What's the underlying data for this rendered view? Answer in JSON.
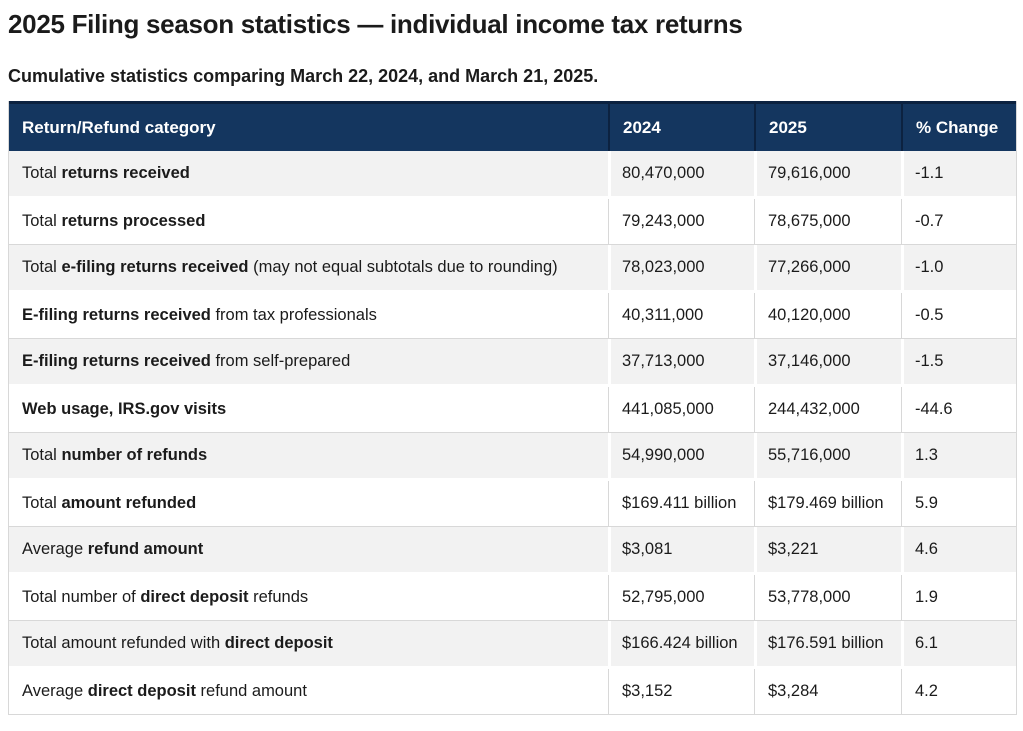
{
  "page": {
    "title": "2025 Filing season statistics — individual income tax returns",
    "subtitle": "Cumulative statistics comparing March 22, 2024, and March 21, 2025."
  },
  "colors": {
    "header_background": "#14365F",
    "header_border": "#0C2240",
    "header_text": "#FFFFFF",
    "row_alternate_background": "#F2F2F2",
    "row_background": "#FFFFFF",
    "cell_border": "#D8D8D8",
    "body_text": "#1B1B1B"
  },
  "table": {
    "columns": [
      "Return/Refund category",
      "2024",
      "2025",
      "% Change"
    ],
    "rows": [
      {
        "category": [
          {
            "text": "Total ",
            "bold": false
          },
          {
            "text": "returns received",
            "bold": true
          }
        ],
        "v2024": "80,470,000",
        "v2025": "79,616,000",
        "change": "-1.1"
      },
      {
        "category": [
          {
            "text": "Total ",
            "bold": false
          },
          {
            "text": "returns processed",
            "bold": true
          }
        ],
        "v2024": "79,243,000",
        "v2025": "78,675,000",
        "change": "-0.7"
      },
      {
        "category": [
          {
            "text": "Total ",
            "bold": false
          },
          {
            "text": "e-filing returns received",
            "bold": true
          },
          {
            "text": " (may not equal subtotals due to rounding)",
            "bold": false
          }
        ],
        "v2024": "78,023,000",
        "v2025": "77,266,000",
        "change": "-1.0"
      },
      {
        "category": [
          {
            "text": "E-filing returns received",
            "bold": true
          },
          {
            "text": " from tax professionals",
            "bold": false
          }
        ],
        "v2024": "40,311,000",
        "v2025": "40,120,000",
        "change": "-0.5"
      },
      {
        "category": [
          {
            "text": "E-filing returns received",
            "bold": true
          },
          {
            "text": " from self-prepared",
            "bold": false
          }
        ],
        "v2024": "37,713,000",
        "v2025": "37,146,000",
        "change": "-1.5"
      },
      {
        "category": [
          {
            "text": "Web usage, IRS.gov visits",
            "bold": true
          }
        ],
        "v2024": "441,085,000",
        "v2025": "244,432,000",
        "change": "-44.6"
      },
      {
        "category": [
          {
            "text": "Total ",
            "bold": false
          },
          {
            "text": "number of refunds",
            "bold": true
          }
        ],
        "v2024": "54,990,000",
        "v2025": "55,716,000",
        "change": "1.3"
      },
      {
        "category": [
          {
            "text": "Total ",
            "bold": false
          },
          {
            "text": "amount refunded",
            "bold": true
          }
        ],
        "v2024": "$169.411 billion",
        "v2025": "$179.469 billion",
        "change": "5.9"
      },
      {
        "category": [
          {
            "text": "Average ",
            "bold": false
          },
          {
            "text": "refund amount",
            "bold": true
          }
        ],
        "v2024": "$3,081",
        "v2025": "$3,221",
        "change": "4.6"
      },
      {
        "category": [
          {
            "text": "Total number of ",
            "bold": false
          },
          {
            "text": "direct deposit",
            "bold": true
          },
          {
            "text": " refunds",
            "bold": false
          }
        ],
        "v2024": "52,795,000",
        "v2025": "53,778,000",
        "change": "1.9"
      },
      {
        "category": [
          {
            "text": "Total amount refunded with ",
            "bold": false
          },
          {
            "text": "direct deposit",
            "bold": true
          }
        ],
        "v2024": "$166.424 billion",
        "v2025": "$176.591 billion",
        "change": "6.1"
      },
      {
        "category": [
          {
            "text": "Average ",
            "bold": false
          },
          {
            "text": "direct deposit",
            "bold": true
          },
          {
            "text": " refund amount",
            "bold": false
          }
        ],
        "v2024": "$3,152",
        "v2025": "$3,284",
        "change": "4.2"
      }
    ]
  }
}
